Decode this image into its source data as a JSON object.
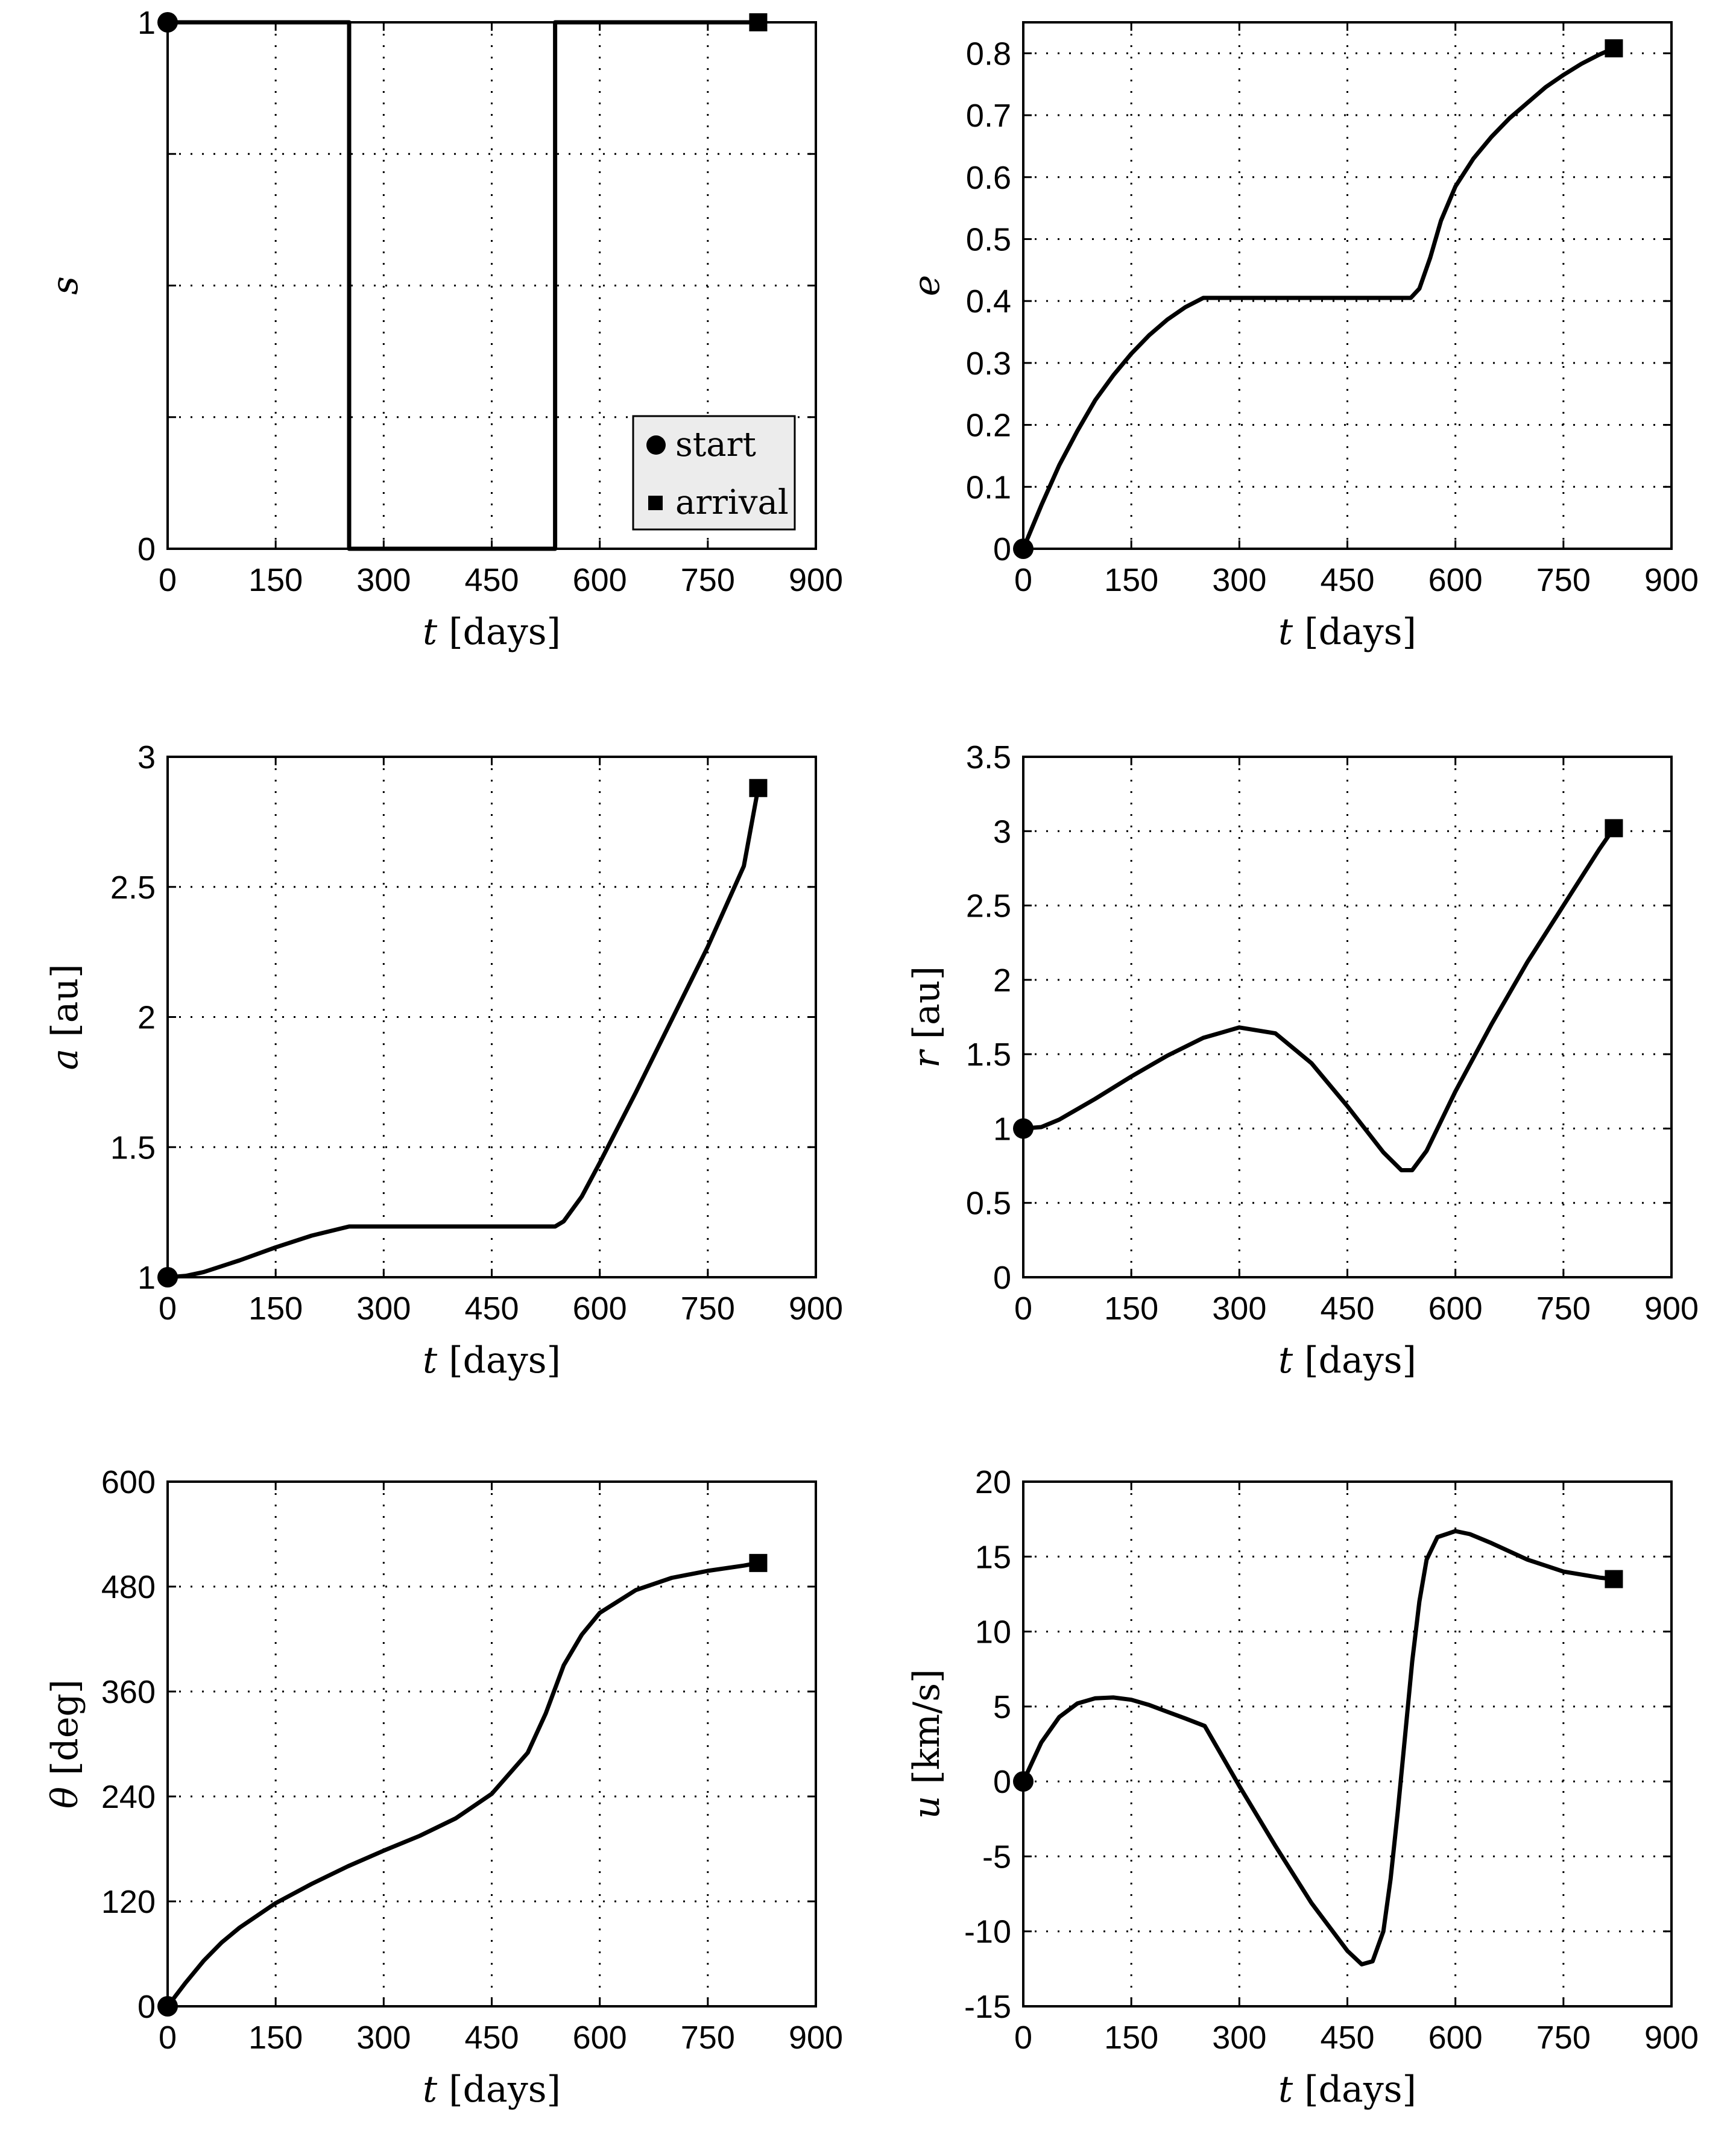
{
  "chart_data": [
    {
      "id": "s",
      "type": "line",
      "ylabel_var": "s",
      "ylabel_unit": "",
      "xlabel_var": "t",
      "xlabel_unit": "[days]",
      "xlim": [
        0,
        900
      ],
      "ylim": [
        0,
        1
      ],
      "xticks": [
        0,
        150,
        300,
        450,
        600,
        750,
        900
      ],
      "yticks": [
        0,
        1
      ],
      "ygrid": [
        0,
        0.25,
        0.5,
        0.75,
        1
      ],
      "grid": true,
      "step": true,
      "series": [
        {
          "name": "s",
          "x": [
            0,
            252,
            252,
            538,
            538,
            820
          ],
          "y": [
            1,
            1,
            0,
            0,
            1,
            1
          ]
        }
      ],
      "start": [
        0,
        1
      ],
      "arrival": [
        820,
        1
      ],
      "legend": {
        "position": "bottom-right",
        "entries": [
          "start",
          "arrival"
        ]
      }
    },
    {
      "id": "e",
      "type": "line",
      "ylabel_var": "e",
      "ylabel_unit": "",
      "xlabel_var": "t",
      "xlabel_unit": "[days]",
      "xlim": [
        0,
        900
      ],
      "ylim": [
        0,
        0.85
      ],
      "xticks": [
        0,
        150,
        300,
        450,
        600,
        750,
        900
      ],
      "yticks": [
        0,
        0.1,
        0.2,
        0.3,
        0.4,
        0.5,
        0.6,
        0.7,
        0.8
      ],
      "grid": true,
      "series": [
        {
          "name": "e",
          "x": [
            0,
            25,
            50,
            75,
            100,
            125,
            150,
            175,
            200,
            225,
            250,
            300,
            400,
            500,
            538,
            550,
            565,
            580,
            600,
            625,
            650,
            675,
            700,
            725,
            750,
            775,
            800,
            820
          ],
          "y": [
            0,
            0.07,
            0.135,
            0.19,
            0.24,
            0.28,
            0.315,
            0.345,
            0.37,
            0.39,
            0.405,
            0.405,
            0.405,
            0.405,
            0.405,
            0.42,
            0.47,
            0.53,
            0.585,
            0.63,
            0.665,
            0.695,
            0.72,
            0.745,
            0.765,
            0.783,
            0.798,
            0.808
          ]
        }
      ],
      "start": [
        0,
        0
      ],
      "arrival": [
        820,
        0.808
      ]
    },
    {
      "id": "a",
      "type": "line",
      "ylabel_var": "a",
      "ylabel_unit": "[au]",
      "xlabel_var": "t",
      "xlabel_unit": "[days]",
      "xlim": [
        0,
        900
      ],
      "ylim": [
        1,
        3
      ],
      "xticks": [
        0,
        150,
        300,
        450,
        600,
        750,
        900
      ],
      "yticks": [
        1,
        1.5,
        2,
        2.5,
        3
      ],
      "grid": true,
      "series": [
        {
          "name": "a",
          "x": [
            0,
            25,
            50,
            100,
            150,
            200,
            252,
            300,
            400,
            500,
            538,
            550,
            575,
            600,
            650,
            700,
            750,
            800,
            820
          ],
          "y": [
            1,
            1.005,
            1.02,
            1.065,
            1.115,
            1.16,
            1.195,
            1.195,
            1.195,
            1.195,
            1.195,
            1.215,
            1.31,
            1.44,
            1.71,
            1.99,
            2.27,
            2.58,
            2.88
          ]
        }
      ],
      "start": [
        0,
        1
      ],
      "arrival": [
        820,
        2.88
      ]
    },
    {
      "id": "r",
      "type": "line",
      "ylabel_var": "r",
      "ylabel_unit": "[au]",
      "xlabel_var": "t",
      "xlabel_unit": "[days]",
      "xlim": [
        0,
        900
      ],
      "ylim": [
        0,
        3.5
      ],
      "xticks": [
        0,
        150,
        300,
        450,
        600,
        750,
        900
      ],
      "yticks": [
        0,
        0.5,
        1,
        1.5,
        2,
        2.5,
        3,
        3.5
      ],
      "grid": true,
      "series": [
        {
          "name": "r",
          "x": [
            0,
            25,
            50,
            100,
            150,
            200,
            250,
            300,
            350,
            400,
            450,
            500,
            525,
            540,
            560,
            580,
            600,
            650,
            700,
            750,
            800,
            820
          ],
          "y": [
            1,
            1.01,
            1.06,
            1.2,
            1.35,
            1.49,
            1.61,
            1.68,
            1.64,
            1.44,
            1.15,
            0.84,
            0.72,
            0.72,
            0.85,
            1.05,
            1.25,
            1.7,
            2.12,
            2.5,
            2.88,
            3.02
          ]
        }
      ],
      "start": [
        0,
        1
      ],
      "arrival": [
        820,
        3.02
      ]
    },
    {
      "id": "theta",
      "type": "line",
      "ylabel_var": "θ",
      "ylabel_unit": "[deg]",
      "xlabel_var": "t",
      "xlabel_unit": "[days]",
      "xlim": [
        0,
        900
      ],
      "ylim": [
        0,
        600
      ],
      "xticks": [
        0,
        150,
        300,
        450,
        600,
        750,
        900
      ],
      "yticks": [
        0,
        120,
        240,
        360,
        480,
        600
      ],
      "grid": true,
      "series": [
        {
          "name": "θ",
          "x": [
            0,
            25,
            50,
            75,
            100,
            150,
            200,
            250,
            300,
            350,
            400,
            450,
            500,
            525,
            550,
            575,
            600,
            650,
            700,
            750,
            800,
            820
          ],
          "y": [
            0,
            27,
            52,
            73,
            90,
            118,
            140,
            160,
            178,
            195,
            215,
            243,
            290,
            335,
            390,
            425,
            450,
            476,
            490,
            498,
            504,
            507
          ]
        }
      ],
      "start": [
        0,
        0
      ],
      "arrival": [
        820,
        507
      ]
    },
    {
      "id": "u",
      "type": "line",
      "ylabel_var": "u",
      "ylabel_unit": "[km/s]",
      "xlabel_var": "t",
      "xlabel_unit": "[days]",
      "xlim": [
        0,
        900
      ],
      "ylim": [
        -15,
        20
      ],
      "xticks": [
        0,
        150,
        300,
        450,
        600,
        750,
        900
      ],
      "yticks": [
        -15,
        -10,
        -5,
        0,
        5,
        10,
        15,
        20
      ],
      "grid": true,
      "series": [
        {
          "name": "u",
          "x": [
            0,
            25,
            50,
            75,
            100,
            125,
            150,
            175,
            200,
            225,
            252,
            300,
            350,
            400,
            450,
            470,
            485,
            500,
            510,
            520,
            530,
            540,
            550,
            560,
            575,
            600,
            620,
            650,
            700,
            750,
            800,
            820
          ],
          "y": [
            0,
            2.6,
            4.3,
            5.2,
            5.55,
            5.6,
            5.45,
            5.1,
            4.65,
            4.2,
            3.7,
            -0.3,
            -4.3,
            -8.1,
            -11.3,
            -12.2,
            -12,
            -10,
            -6.5,
            -2,
            3,
            8,
            12,
            14.8,
            16.3,
            16.7,
            16.5,
            15.9,
            14.8,
            14,
            13.6,
            13.5
          ]
        }
      ],
      "start": [
        0,
        0
      ],
      "arrival": [
        820,
        13.5
      ]
    }
  ]
}
